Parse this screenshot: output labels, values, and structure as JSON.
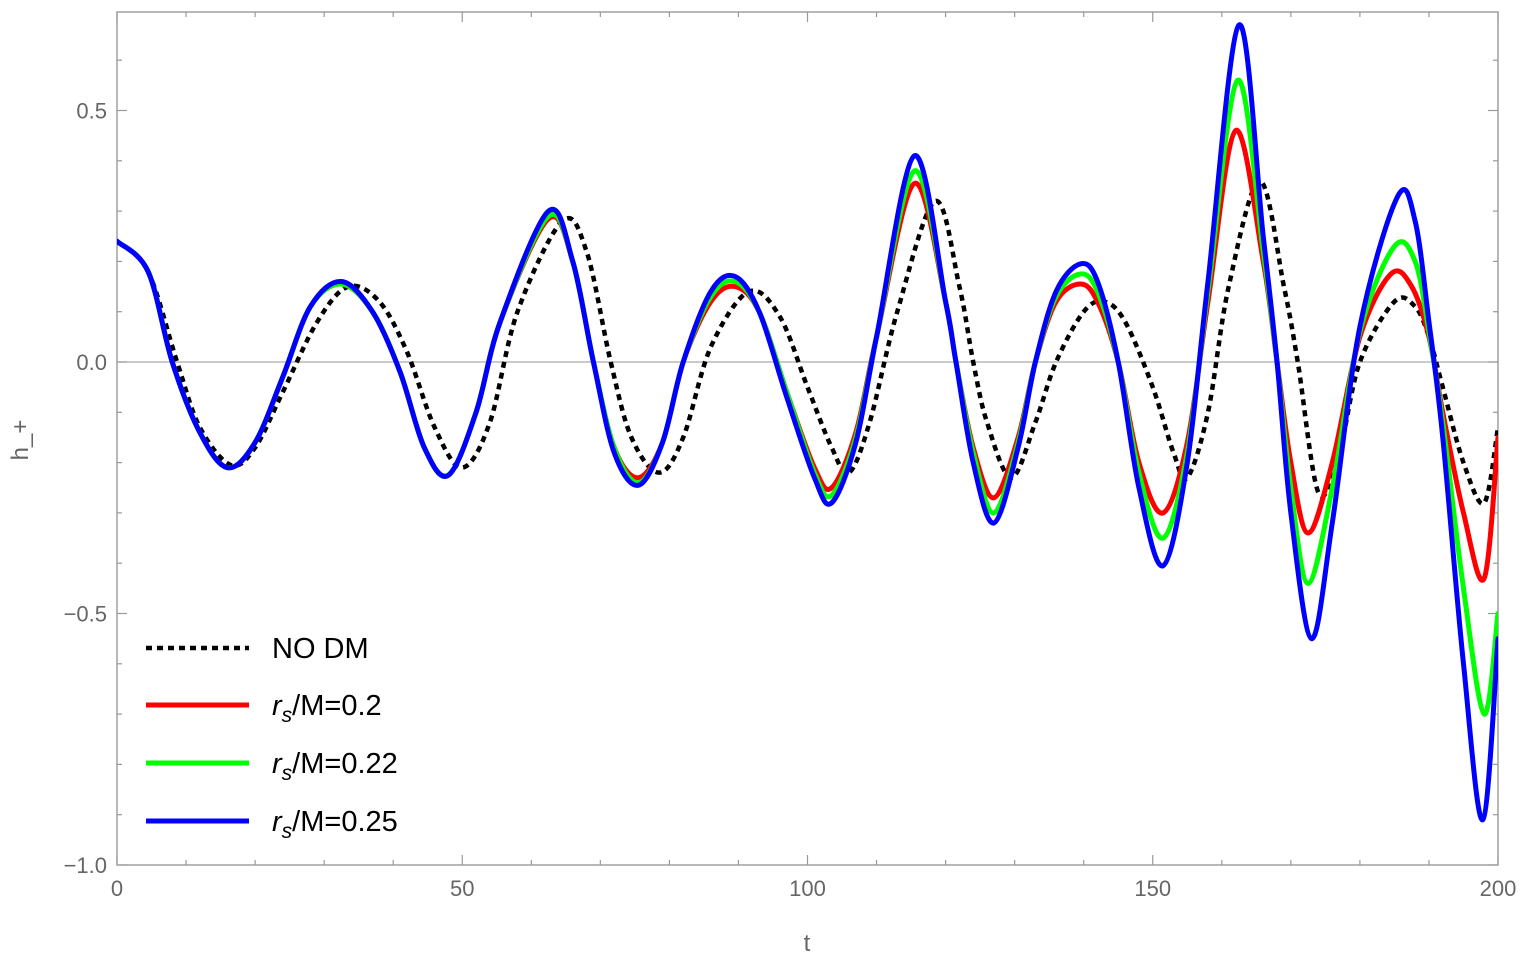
{
  "chart_data": {
    "type": "line",
    "title": "",
    "xlabel": "t",
    "ylabel": "h_+",
    "xlim": [
      0,
      200
    ],
    "ylim": [
      -1.0,
      0.7
    ],
    "xticks": [
      0,
      50,
      100,
      150,
      200
    ],
    "xtick_labels": [
      "0",
      "50",
      "100",
      "150",
      "200"
    ],
    "yticks": [
      -1.0,
      -0.5,
      0.0,
      0.5
    ],
    "ytick_labels": [
      "−1.0",
      "−0.5",
      "0.0",
      "0.5"
    ],
    "grid": false,
    "frame": true,
    "zero_line": true,
    "legend_position": "bottom-left",
    "series": [
      {
        "name": "NO DM",
        "legend_label": {
          "base": "NO DM",
          "sub": "",
          "suffix": ""
        },
        "color": "#000000",
        "style": "dotted",
        "points": [
          [
            0,
            0.24
          ],
          [
            4.5,
            0.18
          ],
          [
            8.7,
            0.0
          ],
          [
            12,
            -0.13
          ],
          [
            16.5,
            -0.205
          ],
          [
            20,
            -0.17
          ],
          [
            24,
            -0.06
          ],
          [
            29,
            0.08
          ],
          [
            33.5,
            0.15
          ],
          [
            38,
            0.12
          ],
          [
            42,
            0.02
          ],
          [
            46,
            -0.13
          ],
          [
            50,
            -0.21
          ],
          [
            54,
            -0.12
          ],
          [
            58,
            0.1
          ],
          [
            64.5,
            0.28
          ],
          [
            68,
            0.22
          ],
          [
            71.5,
            0.0
          ],
          [
            74.5,
            -0.15
          ],
          [
            78.5,
            -0.22
          ],
          [
            82,
            -0.15
          ],
          [
            86,
            0.03
          ],
          [
            91.5,
            0.14
          ],
          [
            96,
            0.09
          ],
          [
            100,
            -0.05
          ],
          [
            103.5,
            -0.17
          ],
          [
            106,
            -0.22
          ],
          [
            109,
            -0.12
          ],
          [
            113,
            0.1
          ],
          [
            118.5,
            0.32
          ],
          [
            122,
            0.15
          ],
          [
            124,
            0.0
          ],
          [
            126,
            -0.12
          ],
          [
            129.5,
            -0.23
          ],
          [
            133,
            -0.12
          ],
          [
            136,
            0.0
          ],
          [
            140,
            0.1
          ],
          [
            143,
            0.12
          ],
          [
            146,
            0.08
          ],
          [
            150,
            -0.05
          ],
          [
            153,
            -0.18
          ],
          [
            155,
            -0.23
          ],
          [
            158,
            -0.1
          ],
          [
            161,
            0.15
          ],
          [
            165.5,
            0.36
          ],
          [
            169,
            0.15
          ],
          [
            171,
            0.0
          ],
          [
            174,
            -0.26
          ],
          [
            177,
            -0.18
          ],
          [
            180,
            0.0
          ],
          [
            185,
            0.12
          ],
          [
            188,
            0.11
          ],
          [
            190,
            0.05
          ],
          [
            192,
            -0.05
          ],
          [
            195,
            -0.2
          ],
          [
            198,
            -0.28
          ],
          [
            200,
            -0.13
          ]
        ]
      },
      {
        "name": "r_s/M=0.2",
        "legend_label": {
          "base": "r",
          "sub": "s",
          "suffix": "/M=0.2"
        },
        "color": "#ff0000",
        "style": "solid",
        "points": [
          [
            0,
            0.24
          ],
          [
            4.5,
            0.18
          ],
          [
            8,
            0.0
          ],
          [
            12,
            -0.14
          ],
          [
            16,
            -0.21
          ],
          [
            20,
            -0.16
          ],
          [
            24,
            -0.03
          ],
          [
            28,
            0.11
          ],
          [
            32.5,
            0.155
          ],
          [
            37,
            0.1
          ],
          [
            41,
            -0.02
          ],
          [
            44.5,
            -0.17
          ],
          [
            48,
            -0.225
          ],
          [
            52,
            -0.1
          ],
          [
            55.5,
            0.08
          ],
          [
            62.5,
            0.285
          ],
          [
            66,
            0.2
          ],
          [
            69,
            0.0
          ],
          [
            72,
            -0.17
          ],
          [
            75.5,
            -0.23
          ],
          [
            79,
            -0.16
          ],
          [
            82,
            0.0
          ],
          [
            86,
            0.12
          ],
          [
            89.5,
            0.15
          ],
          [
            93,
            0.1
          ],
          [
            97,
            -0.06
          ],
          [
            101,
            -0.21
          ],
          [
            103.5,
            -0.25
          ],
          [
            107,
            -0.14
          ],
          [
            110,
            0.05
          ],
          [
            115.5,
            0.355
          ],
          [
            120,
            0.12
          ],
          [
            121.5,
            0.0
          ],
          [
            124,
            -0.17
          ],
          [
            127,
            -0.27
          ],
          [
            130.5,
            -0.15
          ],
          [
            133,
            0.0
          ],
          [
            136,
            0.12
          ],
          [
            139.5,
            0.155
          ],
          [
            142,
            0.12
          ],
          [
            145,
            0.0
          ],
          [
            148,
            -0.2
          ],
          [
            151.5,
            -0.3
          ],
          [
            155,
            -0.16
          ],
          [
            158,
            0.12
          ],
          [
            162,
            0.46
          ],
          [
            166,
            0.2
          ],
          [
            168,
            0.0
          ],
          [
            170,
            -0.2
          ],
          [
            172.5,
            -0.34
          ],
          [
            176,
            -0.2
          ],
          [
            180,
            0.05
          ],
          [
            184.5,
            0.175
          ],
          [
            187.5,
            0.15
          ],
          [
            190,
            0.05
          ],
          [
            192,
            -0.1
          ],
          [
            195,
            -0.3
          ],
          [
            198,
            -0.43
          ],
          [
            200,
            -0.15
          ]
        ]
      },
      {
        "name": "r_s/M=0.22",
        "legend_label": {
          "base": "r",
          "sub": "s",
          "suffix": "/M=0.22"
        },
        "color": "#00ff00",
        "style": "solid",
        "points": [
          [
            0,
            0.24
          ],
          [
            4.5,
            0.18
          ],
          [
            8,
            0.0
          ],
          [
            12,
            -0.14
          ],
          [
            16,
            -0.21
          ],
          [
            20,
            -0.16
          ],
          [
            24,
            -0.03
          ],
          [
            28,
            0.11
          ],
          [
            32.5,
            0.155
          ],
          [
            37,
            0.1
          ],
          [
            41,
            -0.02
          ],
          [
            44.5,
            -0.17
          ],
          [
            48,
            -0.225
          ],
          [
            52,
            -0.1
          ],
          [
            55.5,
            0.08
          ],
          [
            62.5,
            0.29
          ],
          [
            66,
            0.2
          ],
          [
            69,
            0.0
          ],
          [
            72,
            -0.17
          ],
          [
            75.5,
            -0.24
          ],
          [
            79,
            -0.16
          ],
          [
            82,
            0.0
          ],
          [
            86,
            0.13
          ],
          [
            89.5,
            0.16
          ],
          [
            93,
            0.1
          ],
          [
            97,
            -0.06
          ],
          [
            101,
            -0.22
          ],
          [
            103.5,
            -0.265
          ],
          [
            107,
            -0.15
          ],
          [
            110,
            0.05
          ],
          [
            115.5,
            0.38
          ],
          [
            120,
            0.12
          ],
          [
            121.5,
            0.0
          ],
          [
            124,
            -0.18
          ],
          [
            127,
            -0.3
          ],
          [
            130.5,
            -0.16
          ],
          [
            133,
            0.0
          ],
          [
            136,
            0.13
          ],
          [
            139.5,
            0.175
          ],
          [
            142,
            0.14
          ],
          [
            145,
            0.0
          ],
          [
            148,
            -0.22
          ],
          [
            151.5,
            -0.35
          ],
          [
            155,
            -0.18
          ],
          [
            158,
            0.14
          ],
          [
            162.3,
            0.56
          ],
          [
            166,
            0.22
          ],
          [
            168,
            0.0
          ],
          [
            170,
            -0.25
          ],
          [
            172.5,
            -0.44
          ],
          [
            176,
            -0.25
          ],
          [
            180,
            0.06
          ],
          [
            185,
            0.23
          ],
          [
            188,
            0.2
          ],
          [
            190,
            0.06
          ],
          [
            192,
            -0.12
          ],
          [
            195,
            -0.45
          ],
          [
            198,
            -0.7
          ],
          [
            200,
            -0.5
          ]
        ]
      },
      {
        "name": "r_s/M=0.25",
        "legend_label": {
          "base": "r",
          "sub": "s",
          "suffix": "/M=0.25"
        },
        "color": "#0000ff",
        "style": "solid",
        "points": [
          [
            0,
            0.24
          ],
          [
            4.5,
            0.18
          ],
          [
            8,
            0.0
          ],
          [
            12,
            -0.14
          ],
          [
            16,
            -0.21
          ],
          [
            20,
            -0.16
          ],
          [
            24,
            -0.03
          ],
          [
            28,
            0.11
          ],
          [
            32.5,
            0.16
          ],
          [
            37,
            0.1
          ],
          [
            41,
            -0.02
          ],
          [
            44.5,
            -0.17
          ],
          [
            48,
            -0.225
          ],
          [
            52,
            -0.1
          ],
          [
            55.5,
            0.08
          ],
          [
            62.5,
            0.3
          ],
          [
            66,
            0.2
          ],
          [
            69,
            0.0
          ],
          [
            72,
            -0.18
          ],
          [
            75.5,
            -0.245
          ],
          [
            79,
            -0.16
          ],
          [
            82,
            0.0
          ],
          [
            86,
            0.14
          ],
          [
            89.5,
            0.17
          ],
          [
            93,
            0.1
          ],
          [
            97,
            -0.07
          ],
          [
            101,
            -0.23
          ],
          [
            103.5,
            -0.28
          ],
          [
            107,
            -0.16
          ],
          [
            110,
            0.05
          ],
          [
            115.5,
            0.41
          ],
          [
            120,
            0.12
          ],
          [
            121.5,
            0.0
          ],
          [
            124,
            -0.2
          ],
          [
            127,
            -0.32
          ],
          [
            130.5,
            -0.17
          ],
          [
            133,
            0.0
          ],
          [
            136,
            0.14
          ],
          [
            139.5,
            0.195
          ],
          [
            142,
            0.16
          ],
          [
            145,
            0.0
          ],
          [
            148,
            -0.25
          ],
          [
            151.5,
            -0.405
          ],
          [
            155,
            -0.2
          ],
          [
            158,
            0.16
          ],
          [
            162.5,
            0.67
          ],
          [
            166,
            0.25
          ],
          [
            168,
            0.0
          ],
          [
            170,
            -0.3
          ],
          [
            173,
            -0.55
          ],
          [
            176,
            -0.32
          ],
          [
            180,
            0.07
          ],
          [
            185.5,
            0.33
          ],
          [
            188,
            0.28
          ],
          [
            190,
            0.08
          ],
          [
            192,
            -0.15
          ],
          [
            195,
            -0.6
          ],
          [
            197.8,
            -0.91
          ],
          [
            200,
            -0.55
          ]
        ]
      }
    ]
  }
}
